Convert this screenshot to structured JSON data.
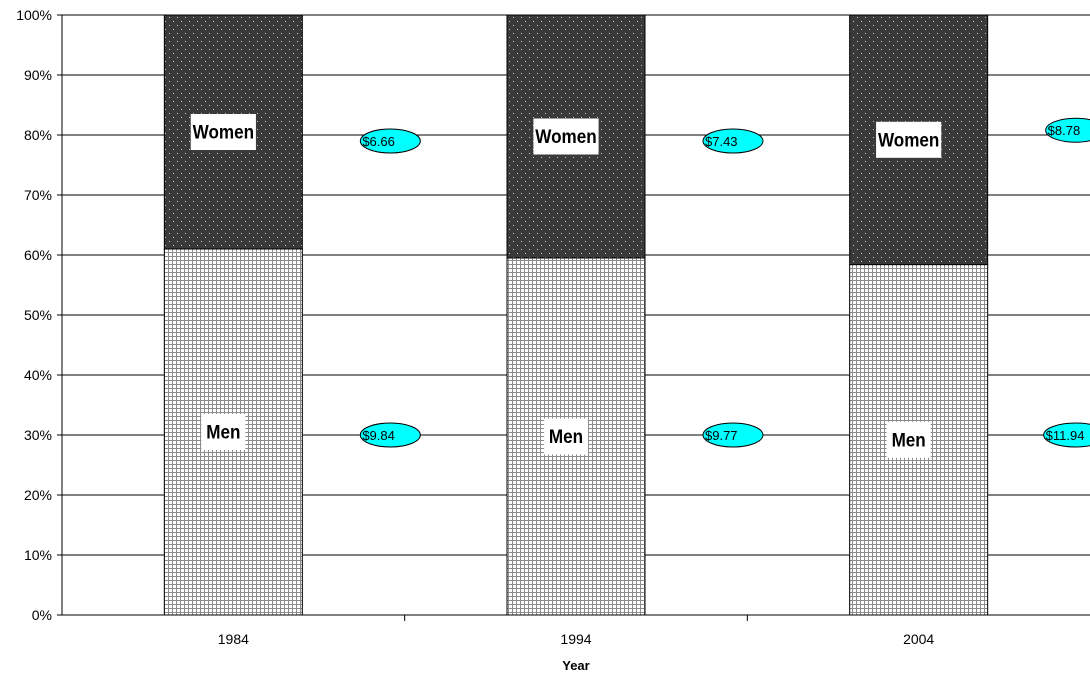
{
  "chart_data": {
    "type": "bar",
    "stacked": true,
    "percent_stacked": true,
    "categories": [
      "1984",
      "1994",
      "2004"
    ],
    "series": [
      {
        "name": "Men",
        "values": [
          61,
          59.5,
          58.4
        ],
        "pattern": "grid",
        "color": "#888888"
      },
      {
        "name": "Women",
        "values": [
          39,
          40.5,
          41.6
        ],
        "pattern": "dots",
        "color": "#3a3a3a"
      }
    ],
    "callouts": [
      {
        "category": "1984",
        "series": "Men",
        "text": "$9.84",
        "y": 30
      },
      {
        "category": "1984",
        "series": "Women",
        "text": "$6.66",
        "y": 79
      },
      {
        "category": "1994",
        "series": "Men",
        "text": "$9.77",
        "y": 30
      },
      {
        "category": "1994",
        "series": "Women",
        "text": "$7.43",
        "y": 79
      },
      {
        "category": "2004",
        "series": "Men",
        "text": "$11.94",
        "y": 30
      },
      {
        "category": "2004",
        "series": "Women",
        "text": "$8.78",
        "y": 80.8
      }
    ],
    "yticks": [
      "0%",
      "10%",
      "20%",
      "30%",
      "40%",
      "50%",
      "60%",
      "70%",
      "80%",
      "90%",
      "100%"
    ],
    "ylim": [
      0,
      100
    ],
    "xlabel": "Year",
    "ylabel": "",
    "grid": true,
    "legend": "none",
    "callout_color": "#00ffff"
  }
}
